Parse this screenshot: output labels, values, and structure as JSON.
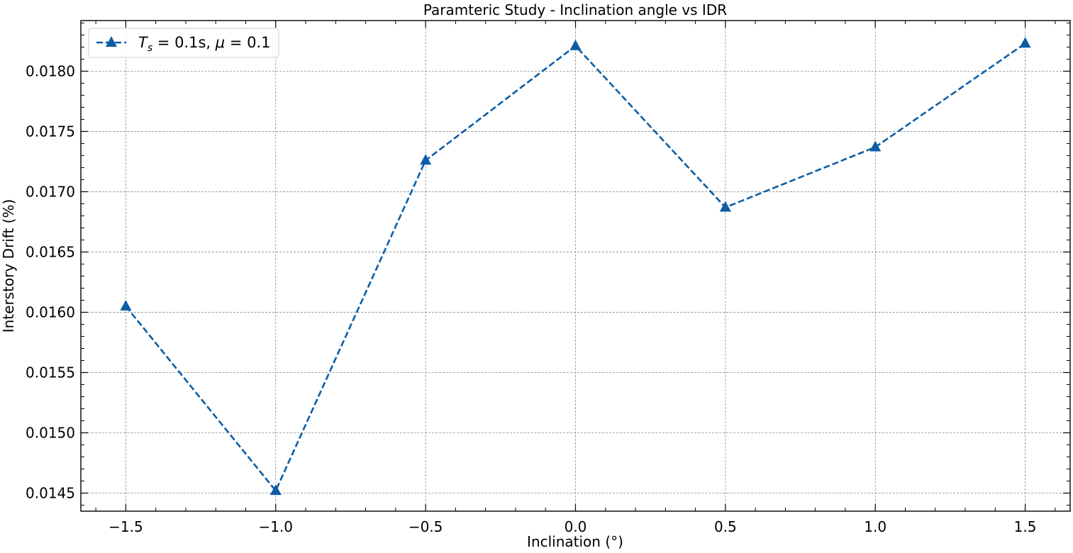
{
  "chart_data": {
    "type": "line",
    "title": "Paramteric Study - Inclination angle vs IDR",
    "xlabel": "Inclination (°)",
    "ylabel": "Interstory Drift (%)",
    "xlim": [
      -1.65,
      1.65
    ],
    "ylim": [
      0.01435,
      0.01842
    ],
    "x_ticks": [
      -1.5,
      -1.0,
      -0.5,
      0.0,
      0.5,
      1.0,
      1.5
    ],
    "x_tick_labels": [
      "−1.5",
      "−1.0",
      "−0.5",
      "0.0",
      "0.5",
      "1.0",
      "1.5"
    ],
    "x_minor_step": 0.1,
    "y_ticks": [
      0.0145,
      0.015,
      0.0155,
      0.016,
      0.0165,
      0.017,
      0.0175,
      0.018
    ],
    "y_tick_labels": [
      "0.0145",
      "0.0150",
      "0.0155",
      "0.0160",
      "0.0165",
      "0.0170",
      "0.0175",
      "0.0180"
    ],
    "y_minor_step": 0.0001,
    "grid": true,
    "legend_position": "top-left",
    "series": [
      {
        "name": "T_s = 0.1s, μ = 0.1",
        "legend": {
          "symbol_main": "T",
          "symbol_sub": "s",
          "eq1": " = 0.1s, ",
          "mu": "μ",
          "eq2": " = 0.1"
        },
        "color": "#0c5da5",
        "line_style": "dashed",
        "marker": "triangle-up",
        "x": [
          -1.5,
          -1.0,
          -0.5,
          0.0,
          0.5,
          1.0,
          1.5
        ],
        "y": [
          0.01605,
          0.01452,
          0.01726,
          0.01821,
          0.01687,
          0.01737,
          0.01823
        ]
      }
    ]
  }
}
